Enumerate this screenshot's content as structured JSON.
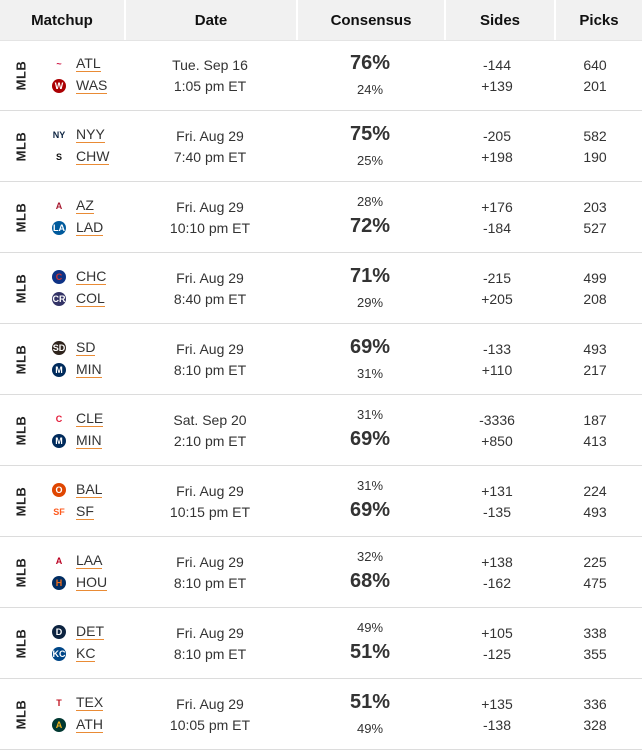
{
  "headers": {
    "matchup": "Matchup",
    "date": "Date",
    "consensus": "Consensus",
    "sides": "Sides",
    "picks": "Picks"
  },
  "rows": [
    {
      "sport": "MLB",
      "teams": [
        {
          "abbr": "ATL",
          "logo": "braves-logo",
          "logo_text": "~",
          "color": "#ce1141",
          "fill": "#fff"
        },
        {
          "abbr": "WAS",
          "logo": "nationals-logo",
          "logo_text": "W",
          "color": "#fff",
          "fill": "#ab0003"
        }
      ],
      "date_line1": "Tue. Sep 16",
      "date_line2": "1:05 pm ET",
      "consensus": [
        "76%",
        "24%"
      ],
      "big_index": 0,
      "sides": [
        "-144",
        "+139"
      ],
      "picks": [
        "640",
        "201"
      ]
    },
    {
      "sport": "MLB",
      "teams": [
        {
          "abbr": "NYY",
          "logo": "yankees-logo",
          "logo_text": "NY",
          "color": "#0c2340",
          "fill": "#fff"
        },
        {
          "abbr": "CHW",
          "logo": "white-sox-logo",
          "logo_text": "S",
          "color": "#111",
          "fill": "#fff"
        }
      ],
      "date_line1": "Fri. Aug 29",
      "date_line2": "7:40 pm ET",
      "consensus": [
        "75%",
        "25%"
      ],
      "big_index": 0,
      "sides": [
        "-205",
        "+198"
      ],
      "picks": [
        "582",
        "190"
      ]
    },
    {
      "sport": "MLB",
      "teams": [
        {
          "abbr": "AZ",
          "logo": "diamondbacks-logo",
          "logo_text": "A",
          "color": "#a71930",
          "fill": "#fff"
        },
        {
          "abbr": "LAD",
          "logo": "dodgers-logo",
          "logo_text": "LA",
          "color": "#fff",
          "fill": "#005a9c"
        }
      ],
      "date_line1": "Fri. Aug 29",
      "date_line2": "10:10 pm ET",
      "consensus": [
        "28%",
        "72%"
      ],
      "big_index": 1,
      "sides": [
        "+176",
        "-184"
      ],
      "picks": [
        "203",
        "527"
      ]
    },
    {
      "sport": "MLB",
      "teams": [
        {
          "abbr": "CHC",
          "logo": "cubs-logo",
          "logo_text": "C",
          "color": "#cc3433",
          "fill": "#0e3386"
        },
        {
          "abbr": "COL",
          "logo": "rockies-logo",
          "logo_text": "CR",
          "color": "#fff",
          "fill": "#333366"
        }
      ],
      "date_line1": "Fri. Aug 29",
      "date_line2": "8:40 pm ET",
      "consensus": [
        "71%",
        "29%"
      ],
      "big_index": 0,
      "sides": [
        "-215",
        "+205"
      ],
      "picks": [
        "499",
        "208"
      ]
    },
    {
      "sport": "MLB",
      "teams": [
        {
          "abbr": "SD",
          "logo": "padres-logo",
          "logo_text": "SD",
          "color": "#fff",
          "fill": "#2f241d"
        },
        {
          "abbr": "MIN",
          "logo": "twins-logo",
          "logo_text": "M",
          "color": "#fff",
          "fill": "#002b5c"
        }
      ],
      "date_line1": "Fri. Aug 29",
      "date_line2": "8:10 pm ET",
      "consensus": [
        "69%",
        "31%"
      ],
      "big_index": 0,
      "sides": [
        "-133",
        "+110"
      ],
      "picks": [
        "493",
        "217"
      ]
    },
    {
      "sport": "MLB",
      "teams": [
        {
          "abbr": "CLE",
          "logo": "guardians-logo",
          "logo_text": "C",
          "color": "#e31937",
          "fill": "#fff"
        },
        {
          "abbr": "MIN",
          "logo": "twins-logo",
          "logo_text": "M",
          "color": "#fff",
          "fill": "#002b5c"
        }
      ],
      "date_line1": "Sat. Sep 20",
      "date_line2": "2:10 pm ET",
      "consensus": [
        "31%",
        "69%"
      ],
      "big_index": 1,
      "sides": [
        "-3336",
        "+850"
      ],
      "picks": [
        "187",
        "413"
      ]
    },
    {
      "sport": "MLB",
      "teams": [
        {
          "abbr": "BAL",
          "logo": "orioles-logo",
          "logo_text": "O",
          "color": "#fff",
          "fill": "#df4601"
        },
        {
          "abbr": "SF",
          "logo": "giants-logo",
          "logo_text": "SF",
          "color": "#fd5a1e",
          "fill": "#fff"
        }
      ],
      "date_line1": "Fri. Aug 29",
      "date_line2": "10:15 pm ET",
      "consensus": [
        "31%",
        "69%"
      ],
      "big_index": 1,
      "sides": [
        "+131",
        "-135"
      ],
      "picks": [
        "224",
        "493"
      ]
    },
    {
      "sport": "MLB",
      "teams": [
        {
          "abbr": "LAA",
          "logo": "angels-logo",
          "logo_text": "A",
          "color": "#ba0021",
          "fill": "#fff"
        },
        {
          "abbr": "HOU",
          "logo": "astros-logo",
          "logo_text": "H",
          "color": "#eb6e1f",
          "fill": "#002d62"
        }
      ],
      "date_line1": "Fri. Aug 29",
      "date_line2": "8:10 pm ET",
      "consensus": [
        "32%",
        "68%"
      ],
      "big_index": 1,
      "sides": [
        "+138",
        "-162"
      ],
      "picks": [
        "225",
        "475"
      ]
    },
    {
      "sport": "MLB",
      "teams": [
        {
          "abbr": "DET",
          "logo": "tigers-logo",
          "logo_text": "D",
          "color": "#fff",
          "fill": "#0c2340"
        },
        {
          "abbr": "KC",
          "logo": "royals-logo",
          "logo_text": "KC",
          "color": "#fff",
          "fill": "#004687"
        }
      ],
      "date_line1": "Fri. Aug 29",
      "date_line2": "8:10 pm ET",
      "consensus": [
        "49%",
        "51%"
      ],
      "big_index": 1,
      "sides": [
        "+105",
        "-125"
      ],
      "picks": [
        "338",
        "355"
      ]
    },
    {
      "sport": "MLB",
      "teams": [
        {
          "abbr": "TEX",
          "logo": "rangers-logo",
          "logo_text": "T",
          "color": "#c0111f",
          "fill": "#fff"
        },
        {
          "abbr": "ATH",
          "logo": "athletics-logo",
          "logo_text": "A",
          "color": "#efb21e",
          "fill": "#003831"
        }
      ],
      "date_line1": "Fri. Aug 29",
      "date_line2": "10:05 pm ET",
      "consensus": [
        "51%",
        "49%"
      ],
      "big_index": 0,
      "sides": [
        "+135",
        "-138"
      ],
      "picks": [
        "336",
        "328"
      ]
    }
  ],
  "colors": {
    "underline": "#e98b35",
    "header_bg": "#f1f1f1"
  }
}
